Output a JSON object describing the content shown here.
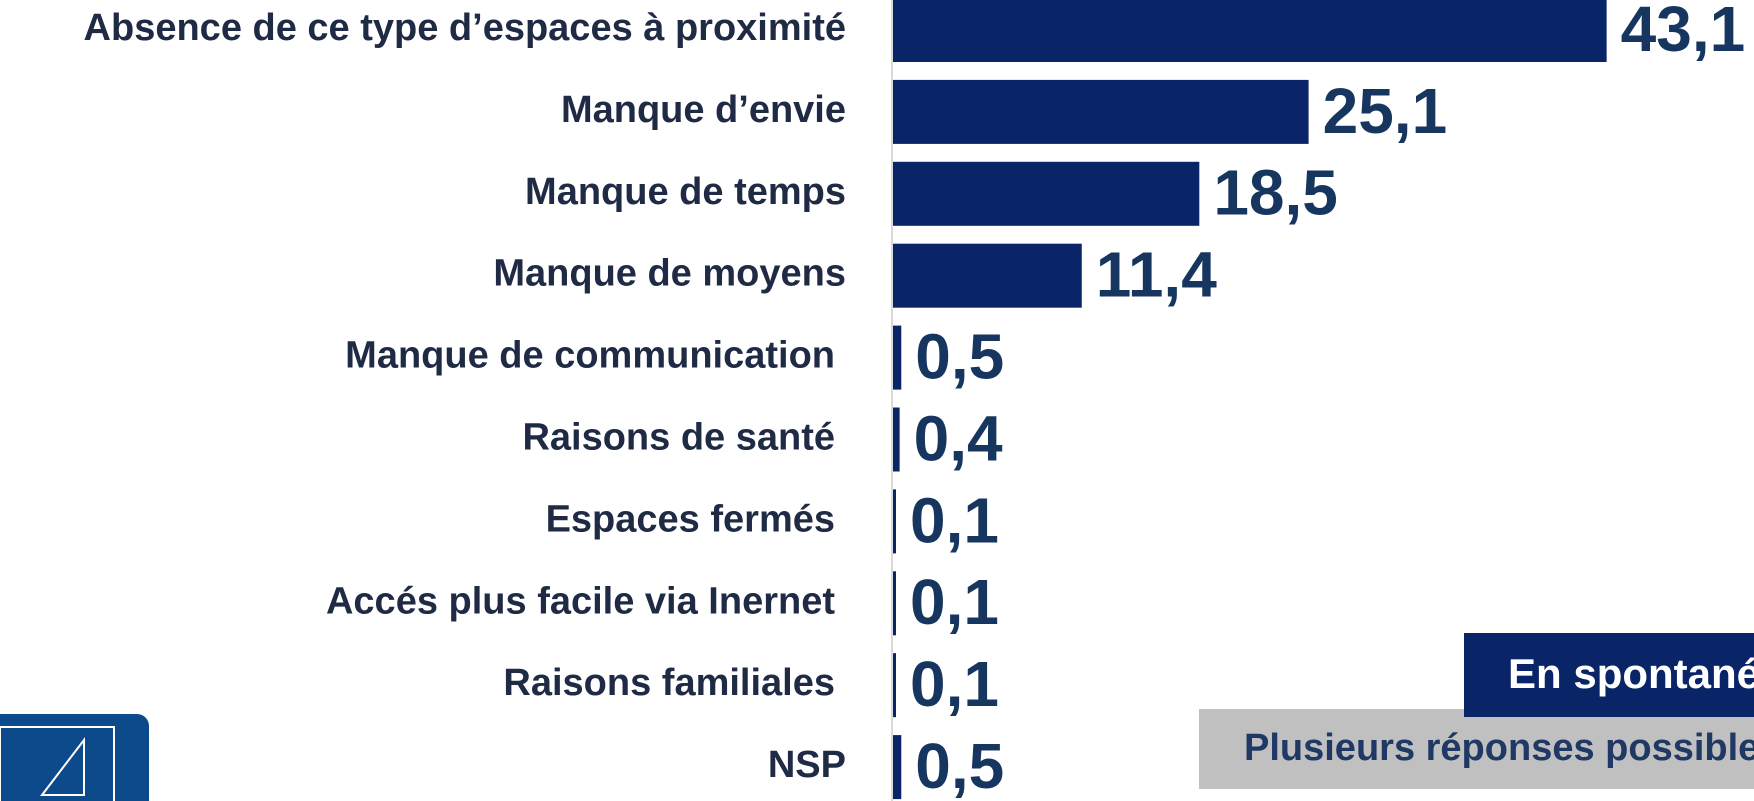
{
  "chart_data": {
    "type": "bar",
    "orientation": "horizontal",
    "categories": [
      "Absence de ce type d’espaces  à proximité",
      "Manque d’envie",
      "Manque de temps",
      "Manque de moyens",
      "Manque de communication",
      "Raisons de santé",
      "Espaces fermés",
      "Accés plus facile via Inernet",
      "Raisons familiales",
      "NSP"
    ],
    "values": [
      43.1,
      25.1,
      18.5,
      11.4,
      0.5,
      0.4,
      0.1,
      0.1,
      0.1,
      0.5
    ],
    "value_labels": [
      "43,1",
      "25,1",
      "18,5",
      "11,4",
      "0,5",
      "0,4",
      "0,1",
      "0,1",
      "0,1",
      "0,5"
    ],
    "color": "#0a2468",
    "xlim": [
      0,
      52
    ],
    "annotations": [
      "En spontané",
      "Plusieurs réponses possibles"
    ]
  }
}
